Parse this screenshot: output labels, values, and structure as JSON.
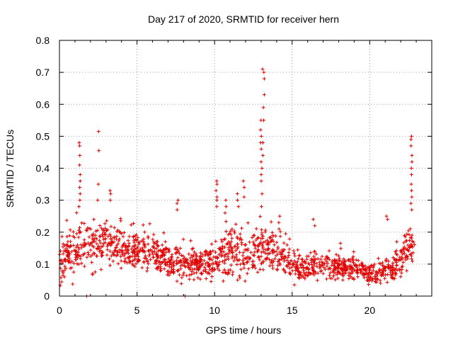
{
  "chart_data": {
    "type": "scatter",
    "title": "Day 217 of 2020, SRMTID for receiver hern",
    "xlabel": "GPS time / hours",
    "ylabel": "SRMTID / TECUs",
    "xlim": [
      0,
      24
    ],
    "ylim": [
      0,
      0.8
    ],
    "xticks": [
      0,
      5,
      10,
      15,
      20
    ],
    "xtick_labels": [
      "0",
      "5",
      "10",
      "15",
      "20"
    ],
    "yticks": [
      0,
      0.1,
      0.2,
      0.3,
      0.4,
      0.5,
      0.6,
      0.7,
      0.8
    ],
    "ytick_labels": [
      "0",
      "0.1",
      "0.2",
      "0.3",
      "0.4",
      "0.5",
      "0.6",
      "0.7",
      "0.8"
    ],
    "grid": true,
    "marker": "plus",
    "color": "#e00000",
    "profile": {
      "x": [
        0,
        0.5,
        1.0,
        1.5,
        2.0,
        2.5,
        3.0,
        3.5,
        4.0,
        4.5,
        5.0,
        5.5,
        6.0,
        6.5,
        7.0,
        7.5,
        8.0,
        8.5,
        9.0,
        9.5,
        10.0,
        10.5,
        11.0,
        11.5,
        12.0,
        12.5,
        13.0,
        13.5,
        14.0,
        14.5,
        15.0,
        15.5,
        16.0,
        16.5,
        17.0,
        17.5,
        18.0,
        18.5,
        19.0,
        19.5,
        20.0,
        20.5,
        21.0,
        21.5,
        22.0,
        22.5,
        22.9
      ],
      "median": [
        0.09,
        0.12,
        0.14,
        0.16,
        0.15,
        0.16,
        0.17,
        0.16,
        0.15,
        0.15,
        0.14,
        0.14,
        0.13,
        0.12,
        0.11,
        0.11,
        0.1,
        0.1,
        0.1,
        0.1,
        0.12,
        0.13,
        0.14,
        0.14,
        0.13,
        0.13,
        0.15,
        0.15,
        0.13,
        0.11,
        0.09,
        0.09,
        0.09,
        0.1,
        0.1,
        0.09,
        0.09,
        0.09,
        0.09,
        0.08,
        0.07,
        0.07,
        0.08,
        0.09,
        0.11,
        0.15,
        0.14
      ],
      "spread": [
        0.05,
        0.06,
        0.07,
        0.07,
        0.07,
        0.07,
        0.07,
        0.06,
        0.06,
        0.06,
        0.05,
        0.05,
        0.05,
        0.05,
        0.05,
        0.05,
        0.04,
        0.04,
        0.04,
        0.05,
        0.06,
        0.06,
        0.07,
        0.07,
        0.06,
        0.06,
        0.07,
        0.07,
        0.06,
        0.05,
        0.04,
        0.04,
        0.04,
        0.04,
        0.04,
        0.04,
        0.04,
        0.04,
        0.04,
        0.04,
        0.03,
        0.03,
        0.04,
        0.04,
        0.05,
        0.07,
        0.07
      ]
    },
    "spikes": [
      {
        "x": 1.3,
        "y": [
          0.48,
          0.47,
          0.44,
          0.41,
          0.38,
          0.36,
          0.34,
          0.32,
          0.3,
          0.28
        ]
      },
      {
        "x": 2.5,
        "y": [
          0.515,
          0.455,
          0.35,
          0.3
        ]
      },
      {
        "x": 3.3,
        "y": [
          0.33,
          0.32,
          0.3
        ]
      },
      {
        "x": 7.6,
        "y": [
          0.3,
          0.29,
          0.27
        ]
      },
      {
        "x": 10.1,
        "y": [
          0.36,
          0.35,
          0.33,
          0.31,
          0.3,
          0.28
        ]
      },
      {
        "x": 10.7,
        "y": [
          0.3,
          0.28,
          0.26
        ]
      },
      {
        "x": 11.5,
        "y": [
          0.32,
          0.3,
          0.28
        ]
      },
      {
        "x": 11.9,
        "y": [
          0.36,
          0.34,
          0.31
        ]
      },
      {
        "x": 13.0,
        "y": [
          0.55,
          0.52,
          0.5,
          0.48,
          0.46,
          0.42,
          0.4,
          0.38,
          0.36,
          0.32,
          0.28
        ]
      },
      {
        "x": 13.15,
        "y": [
          0.71,
          0.7,
          0.68,
          0.63,
          0.59,
          0.55,
          0.48,
          0.44
        ]
      },
      {
        "x": 14.2,
        "y": [
          0.25,
          0.23,
          0.21
        ]
      },
      {
        "x": 16.4,
        "y": [
          0.24,
          0.22
        ]
      },
      {
        "x": 21.1,
        "y": [
          0.25,
          0.24
        ]
      },
      {
        "x": 22.7,
        "y": [
          0.5,
          0.49,
          0.47,
          0.44,
          0.42,
          0.4,
          0.38,
          0.35,
          0.33,
          0.31,
          0.29,
          0.27
        ]
      }
    ],
    "zero_points": [
      {
        "x": 1.75,
        "y": 0
      },
      {
        "x": 8.1,
        "y": 0
      }
    ]
  }
}
